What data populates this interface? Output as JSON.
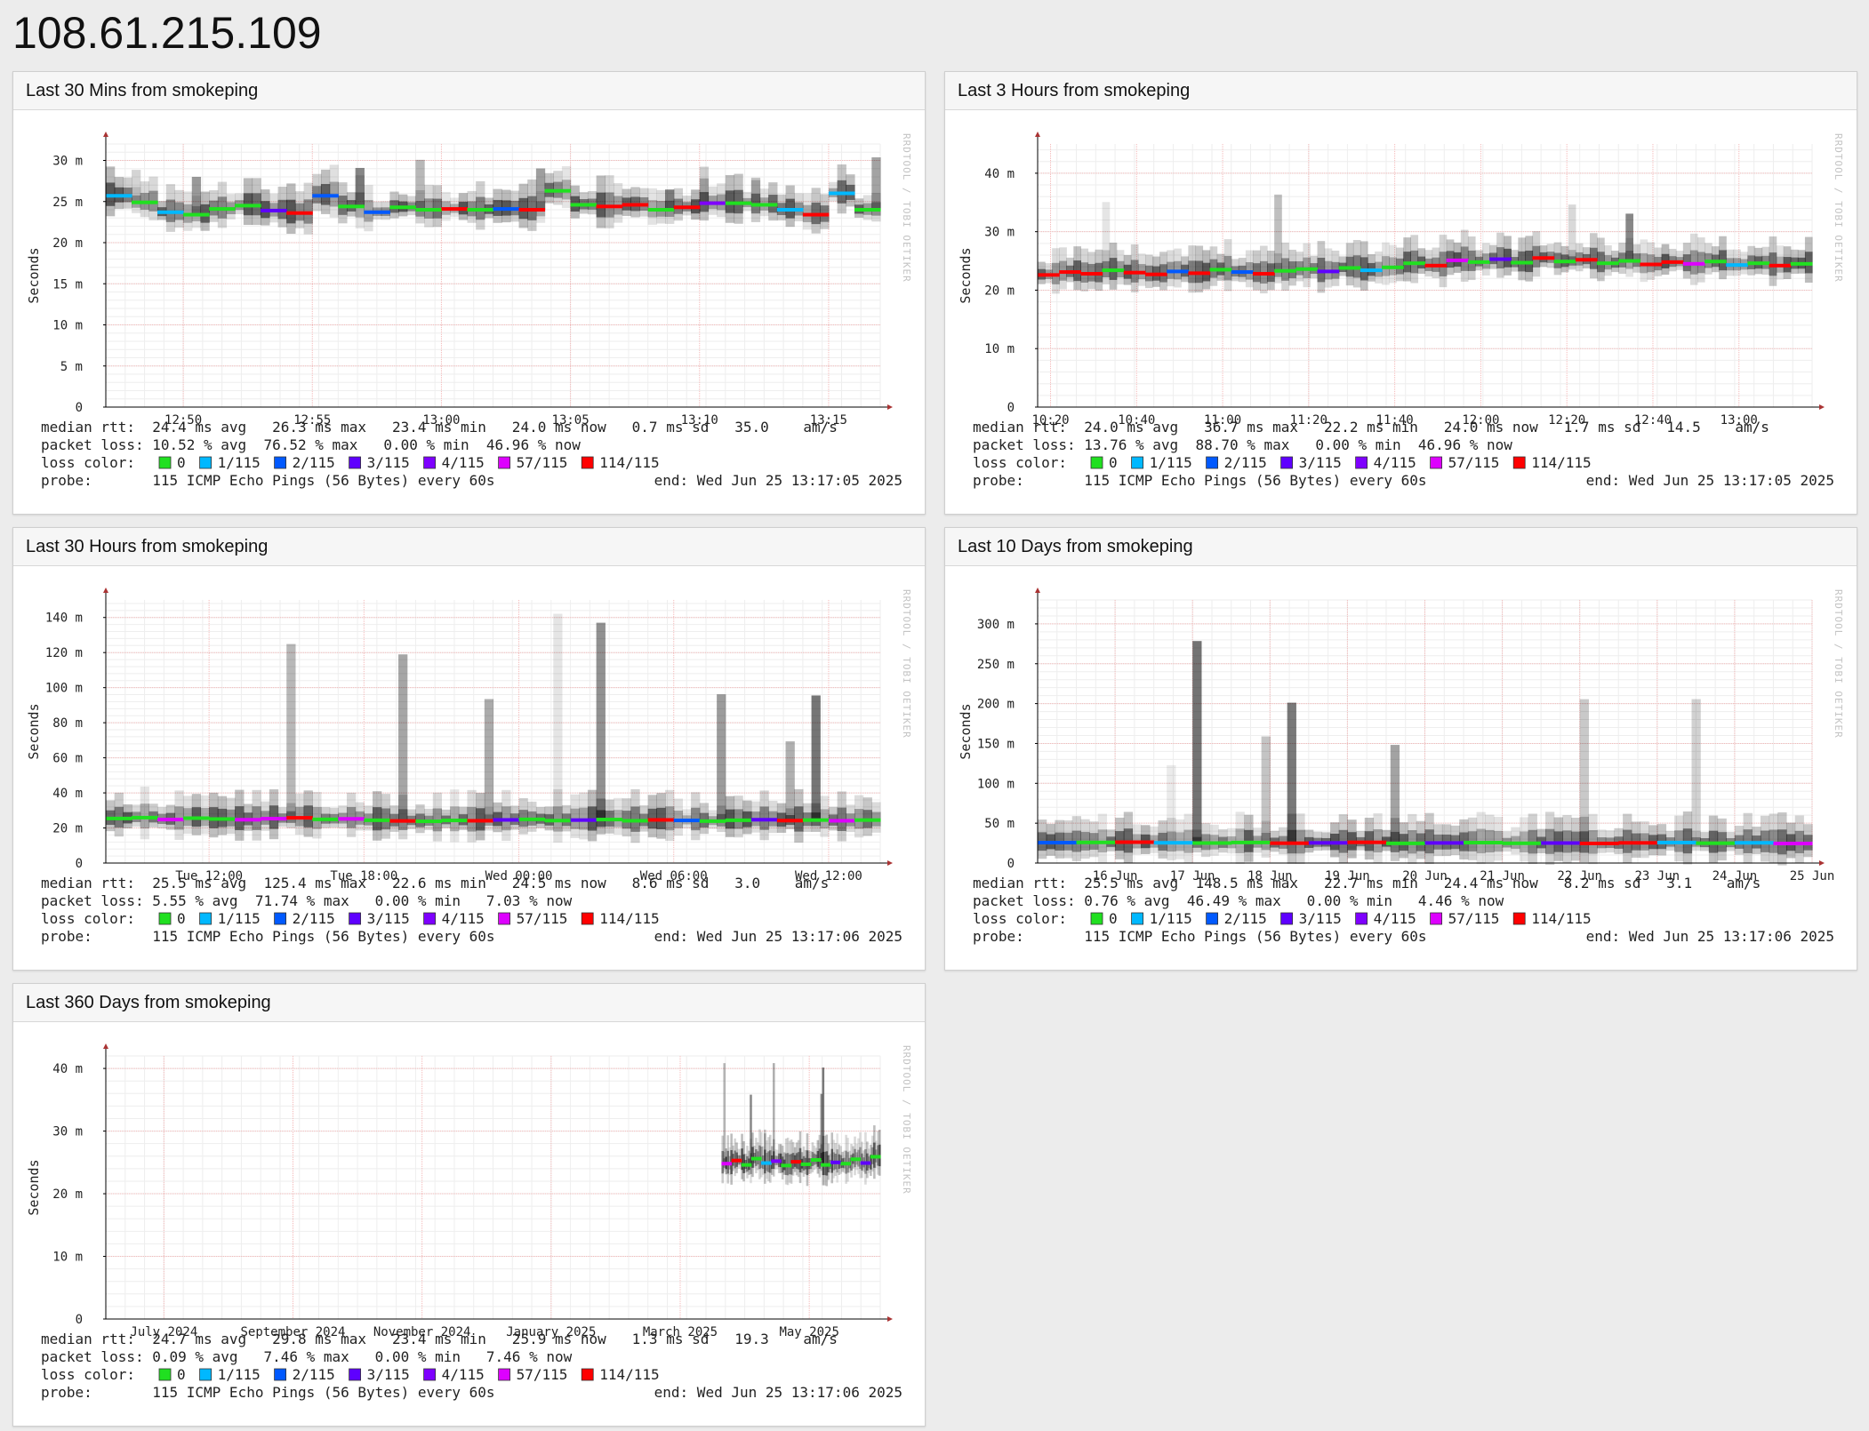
{
  "page": {
    "title": "108.61.215.109"
  },
  "common": {
    "y_axis_label": "Seconds",
    "watermark": "RRDTOOL / TOBI OETIKER",
    "loss_color_label": "loss color:",
    "loss_legend": [
      {
        "label": "0",
        "color": "#20e020"
      },
      {
        "label": "1/115",
        "color": "#00b8ff"
      },
      {
        "label": "2/115",
        "color": "#0059ff"
      },
      {
        "label": "3/115",
        "color": "#5e00ff"
      },
      {
        "label": "4/115",
        "color": "#7e00ff"
      },
      {
        "label": "57/115",
        "color": "#dd00ff"
      },
      {
        "label": "114/115",
        "color": "#ff0000"
      }
    ]
  },
  "panels": [
    {
      "title": "Last 30 Mins from smokeping",
      "stats": {
        "rtt_line": "median rtt:  24.4 ms avg   26.3 ms max   23.4 ms min   24.0 ms now   0.7 ms sd   35.0    am/s",
        "loss_line": "packet loss: 10.52 % avg  76.52 % max   0.00 % min  46.96 % now",
        "probe_line": "probe:       115 ICMP Echo Pings (56 Bytes) every 60s",
        "end_line": "end: Wed Jun 25 13:17:05 2025"
      },
      "chart_data": {
        "type": "line",
        "y_unit": "ms",
        "ylim": [
          0,
          32
        ],
        "yticks": [
          0,
          5,
          10,
          15,
          20,
          25,
          30
        ],
        "ytick_labels": [
          "0",
          "5 m",
          "10 m",
          "15 m",
          "20 m",
          "25 m",
          "30 m"
        ],
        "x_range": [
          0,
          30
        ],
        "xticks": [
          3,
          8,
          13,
          18,
          23,
          28
        ],
        "xtick_labels": [
          "12:50",
          "12:55",
          "13:00",
          "13:05",
          "13:10",
          "13:15"
        ],
        "grid": true,
        "series": [
          {
            "values": [
              25.7,
              24.9,
              23.7,
              23.4,
              24.1,
              24.5,
              23.9,
              23.6,
              25.7,
              24.4,
              23.7,
              24.3,
              24.0,
              24.1,
              24.0,
              24.1,
              24.0,
              26.3,
              24.6,
              24.4,
              24.6,
              24.0,
              24.3,
              24.8,
              24.8,
              24.6,
              24.0,
              23.4,
              26.0,
              24.0
            ]
          }
        ]
      }
    },
    {
      "title": "Last 3 Hours from smokeping",
      "stats": {
        "rtt_line": "median rtt:  24.0 ms avg   36.7 ms max   22.2 ms min   24.0 ms now   1.7 ms sd   14.5    am/s",
        "loss_line": "packet loss: 13.76 % avg  88.70 % max   0.00 % min  46.96 % now",
        "probe_line": "probe:       115 ICMP Echo Pings (56 Bytes) every 60s",
        "end_line": "end: Wed Jun 25 13:17:05 2025"
      },
      "chart_data": {
        "type": "line",
        "y_unit": "ms",
        "ylim": [
          0,
          45
        ],
        "yticks": [
          0,
          10,
          20,
          30,
          40
        ],
        "ytick_labels": [
          "0",
          "10 m",
          "20 m",
          "30 m",
          "40 m"
        ],
        "x_range": [
          0,
          180
        ],
        "xticks": [
          3,
          23,
          43,
          63,
          83,
          103,
          123,
          143,
          163,
          183
        ],
        "xtick_labels": [
          "10:20",
          "10:40",
          "11:00",
          "11:20",
          "11:40",
          "12:00",
          "12:20",
          "12:40",
          "13:00",
          ""
        ],
        "grid": true,
        "series": [
          {
            "values": [
              22.6,
              23.1,
              22.8,
              23.4,
              23.0,
              22.7,
              23.2,
              22.9,
              23.5,
              23.1,
              22.8,
              23.3,
              23.6,
              23.2,
              23.8,
              23.4,
              23.9,
              24.6,
              24.2,
              25.1,
              24.8,
              25.3,
              24.7,
              25.5,
              24.9,
              25.2,
              24.6,
              25.0,
              24.4,
              24.8,
              24.5,
              24.9,
              24.3,
              24.6,
              24.2,
              24.5
            ]
          }
        ]
      }
    },
    {
      "title": "Last 30 Hours from smokeping",
      "stats": {
        "rtt_line": "median rtt:  25.5 ms avg  125.4 ms max   22.6 ms min   24.5 ms now   8.6 ms sd   3.0    am/s",
        "loss_line": "packet loss: 5.55 % avg  71.74 % max   0.00 % min   7.03 % now",
        "probe_line": "probe:       115 ICMP Echo Pings (56 Bytes) every 60s",
        "end_line": "end: Wed Jun 25 13:17:06 2025"
      },
      "chart_data": {
        "type": "line",
        "y_unit": "ms",
        "ylim": [
          0,
          150
        ],
        "yticks": [
          0,
          20,
          40,
          60,
          80,
          100,
          120,
          140
        ],
        "ytick_labels": [
          "0",
          "20 m",
          "40 m",
          "60 m",
          "80 m",
          "100 m",
          "120 m",
          "140 m"
        ],
        "x_range": [
          0,
          30
        ],
        "xticks": [
          4,
          10,
          16,
          22,
          28
        ],
        "xtick_labels": [
          "Tue 12:00",
          "Tue 18:00",
          "Wed 00:00",
          "Wed 06:00",
          "Wed 12:00"
        ],
        "grid": true,
        "series": [
          {
            "values": [
              25.4,
              25.9,
              24.8,
              25.6,
              25.1,
              24.7,
              25.3,
              25.8,
              24.9,
              25.2,
              24.4,
              24.0,
              23.8,
              24.3,
              24.1,
              24.6,
              24.9,
              24.2,
              24.5,
              24.8,
              24.1,
              24.6,
              24.3,
              23.9,
              24.4,
              24.7,
              24.2,
              24.5,
              24.1,
              24.5
            ]
          }
        ]
      }
    },
    {
      "title": "Last 10 Days from smokeping",
      "stats": {
        "rtt_line": "median rtt:  25.5 ms avg  148.5 ms max   22.7 ms min   24.4 ms now   8.2 ms sd   3.1    am/s",
        "loss_line": "packet loss: 0.76 % avg  46.49 % max   0.00 % min   4.46 % now",
        "probe_line": "probe:       115 ICMP Echo Pings (56 Bytes) every 60s",
        "end_line": "end: Wed Jun 25 13:17:06 2025"
      },
      "chart_data": {
        "type": "line",
        "y_unit": "ms",
        "ylim": [
          0,
          330
        ],
        "yticks": [
          0,
          50,
          100,
          150,
          200,
          250,
          300
        ],
        "ytick_labels": [
          "0",
          "50 m",
          "100 m",
          "150 m",
          "200 m",
          "250 m",
          "300 m"
        ],
        "x_range": [
          0,
          10
        ],
        "xticks": [
          1,
          2,
          3,
          4,
          5,
          6,
          7,
          8,
          9,
          10
        ],
        "xtick_labels": [
          "16 Jun",
          "17 Jun",
          "18 Jun",
          "19 Jun",
          "20 Jun",
          "21 Jun",
          "22 Jun",
          "23 Jun",
          "24 Jun",
          "25 Jun"
        ],
        "grid": true,
        "series": [
          {
            "values": [
              25.6,
              25.9,
              26.2,
              25.4,
              25.1,
              25.8,
              24.9,
              25.3,
              26.0,
              24.7,
              25.2,
              25.6,
              24.8,
              25.1,
              24.6,
              25.3,
              25.7,
              24.9,
              25.4,
              24.5
            ]
          }
        ]
      }
    },
    {
      "title": "Last 360 Days from smokeping",
      "stats": {
        "rtt_line": "median rtt:  24.7 ms avg   29.8 ms max   23.4 ms min   25.9 ms now   1.3 ms sd   19.3    am/s",
        "loss_line": "packet loss: 0.09 % avg   7.46 % max   0.00 % min   7.46 % now",
        "probe_line": "probe:       115 ICMP Echo Pings (56 Bytes) every 60s",
        "end_line": "end: Wed Jun 25 13:17:06 2025"
      },
      "chart_data": {
        "type": "line",
        "y_unit": "ms",
        "ylim": [
          0,
          42
        ],
        "yticks": [
          0,
          10,
          20,
          30,
          40
        ],
        "ytick_labels": [
          "0",
          "10 m",
          "20 m",
          "30 m",
          "40 m"
        ],
        "x_range": [
          0,
          12
        ],
        "xticks": [
          0.9,
          2.9,
          4.9,
          6.9,
          8.9,
          10.9
        ],
        "xtick_labels": [
          "July 2024",
          "September 2024",
          "November 2024",
          "January 2025",
          "March 2025",
          "May 2025"
        ],
        "grid": true,
        "series": [
          {
            "values": [
              24.8,
              25.3,
              24.6,
              25.6,
              24.9,
              25.2,
              24.5,
              25.1,
              24.7,
              25.4,
              24.6,
              25.0,
              24.8,
              25.5,
              24.9,
              25.9
            ]
          }
        ]
      }
    }
  ]
}
